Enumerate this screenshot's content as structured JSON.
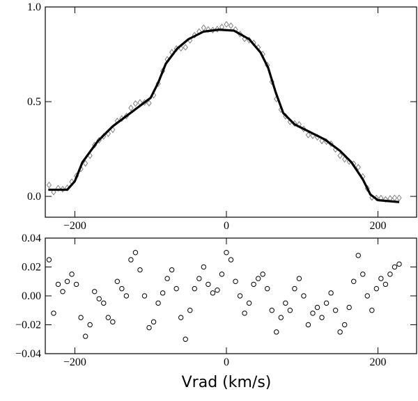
{
  "chart_data": [
    {
      "type": "line",
      "xlim": [
        -239,
        251
      ],
      "ylim": [
        -0.11,
        1.0
      ],
      "xticks": [
        {
          "value": -200,
          "label": "−200"
        },
        0,
        200
      ],
      "yticks": [
        {
          "value": 0,
          "label": "0.0"
        },
        {
          "value": 0.5,
          "label": "0.5"
        },
        {
          "value": 1.0,
          "label": "1.0"
        }
      ],
      "series": [
        {
          "style": "markers",
          "marker": "diamond",
          "color": "#808080",
          "x": [
            -234,
            -228,
            -222,
            -216,
            -210,
            -204,
            -198,
            -192,
            -186,
            -180,
            -174,
            -168,
            -162,
            -156,
            -150,
            -144,
            -138,
            -132,
            -126,
            -120,
            -114,
            -108,
            -102,
            -96,
            -90,
            -84,
            -78,
            -72,
            -66,
            -60,
            -54,
            -48,
            -42,
            -36,
            -30,
            -24,
            -18,
            -12,
            -6,
            0,
            6,
            12,
            18,
            24,
            30,
            36,
            42,
            48,
            54,
            60,
            66,
            72,
            78,
            84,
            90,
            96,
            102,
            108,
            114,
            120,
            126,
            132,
            138,
            144,
            150,
            156,
            162,
            168,
            174,
            180,
            186,
            192,
            198,
            204,
            210,
            216,
            222,
            228
          ],
          "values": [
            0.06,
            0.023,
            0.043,
            0.038,
            0.045,
            0.077,
            0.108,
            0.145,
            0.174,
            0.215,
            0.271,
            0.296,
            0.317,
            0.331,
            0.352,
            0.398,
            0.411,
            0.424,
            0.467,
            0.49,
            0.496,
            0.496,
            0.492,
            0.534,
            0.595,
            0.662,
            0.723,
            0.761,
            0.78,
            0.782,
            0.787,
            0.824,
            0.851,
            0.87,
            0.89,
            0.881,
            0.878,
            0.883,
            0.894,
            0.908,
            0.901,
            0.881,
            0.857,
            0.832,
            0.825,
            0.81,
            0.786,
            0.751,
            0.693,
            0.605,
            0.514,
            0.458,
            0.423,
            0.394,
            0.385,
            0.38,
            0.356,
            0.324,
            0.32,
            0.312,
            0.293,
            0.289,
            0.278,
            0.248,
            0.215,
            0.196,
            0.184,
            0.172,
            0.154,
            0.105,
            0.042,
            -0.006,
            -0.009,
            -0.009,
            -0.016,
            -0.011,
            -0.008,
            -0.008
          ]
        },
        {
          "style": "line",
          "color": "#000000",
          "x": [
            -235,
            -210,
            -200,
            -190,
            -170,
            -150,
            -130,
            -110,
            -100,
            -90,
            -80,
            -65,
            -50,
            -30,
            -10,
            10,
            30,
            45,
            55,
            65,
            75,
            90,
            110,
            130,
            150,
            165,
            180,
            190,
            200,
            228
          ],
          "values": [
            0.035,
            0.035,
            0.08,
            0.18,
            0.29,
            0.37,
            0.43,
            0.49,
            0.52,
            0.6,
            0.7,
            0.78,
            0.83,
            0.87,
            0.88,
            0.875,
            0.83,
            0.76,
            0.68,
            0.55,
            0.44,
            0.38,
            0.34,
            0.3,
            0.24,
            0.18,
            0.09,
            0.01,
            -0.02,
            -0.03
          ]
        }
      ]
    },
    {
      "type": "scatter",
      "xlabel": "Vrad (km/s)",
      "xlim": [
        -239,
        251
      ],
      "ylim": [
        -0.04,
        0.04
      ],
      "xticks": [
        {
          "value": -200,
          "label": "−200"
        },
        0,
        200
      ],
      "yticks": [
        {
          "value": -0.04,
          "label": "−0.04"
        },
        {
          "value": -0.02,
          "label": "−0.02"
        },
        {
          "value": 0,
          "label": "0.00"
        },
        {
          "value": 0.02,
          "label": "0.02"
        },
        {
          "value": 0.04,
          "label": "0.04"
        }
      ],
      "series": [
        {
          "style": "markers",
          "marker": "circle",
          "color": "#000000",
          "x": [
            -234,
            -228,
            -222,
            -216,
            -210,
            -204,
            -198,
            -192,
            -186,
            -180,
            -174,
            -168,
            -162,
            -156,
            -150,
            -144,
            -138,
            -132,
            -126,
            -120,
            -114,
            -108,
            -102,
            -96,
            -90,
            -84,
            -78,
            -72,
            -66,
            -60,
            -54,
            -48,
            -42,
            -36,
            -30,
            -24,
            -18,
            -12,
            -6,
            0,
            6,
            12,
            18,
            24,
            30,
            36,
            42,
            48,
            54,
            60,
            66,
            72,
            78,
            84,
            90,
            96,
            102,
            108,
            114,
            120,
            126,
            132,
            138,
            144,
            150,
            156,
            162,
            168,
            174,
            180,
            186,
            192,
            198,
            204,
            210,
            216,
            222,
            228
          ],
          "values": [
            0.025,
            -0.012,
            0.008,
            0.003,
            0.01,
            0.015,
            0.008,
            -0.015,
            -0.028,
            -0.02,
            0.003,
            -0.002,
            -0.005,
            -0.015,
            -0.018,
            0.01,
            0.005,
            0.0,
            0.025,
            0.03,
            0.018,
            0.0,
            -0.022,
            -0.018,
            -0.005,
            0.002,
            0.012,
            0.018,
            0.005,
            -0.015,
            -0.03,
            -0.01,
            0.005,
            0.012,
            0.02,
            0.008,
            0.002,
            0.004,
            0.015,
            0.03,
            0.025,
            0.01,
            0.0,
            -0.012,
            -0.005,
            0.008,
            0.012,
            0.015,
            0.005,
            -0.01,
            -0.025,
            -0.015,
            -0.005,
            -0.01,
            0.005,
            0.012,
            0.0,
            -0.02,
            -0.012,
            -0.008,
            -0.015,
            -0.005,
            0.002,
            -0.01,
            -0.025,
            -0.02,
            -0.008,
            0.01,
            0.028,
            0.015,
            0.0,
            -0.01,
            0.005,
            0.012,
            0.008,
            0.015,
            0.02,
            0.022
          ]
        }
      ]
    }
  ]
}
